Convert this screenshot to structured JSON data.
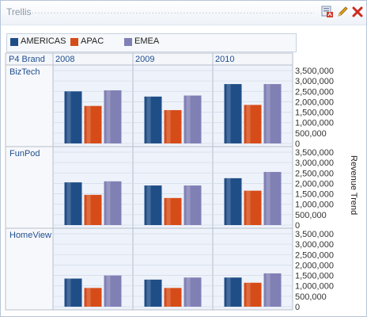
{
  "window": {
    "title": "Trellis"
  },
  "toolbar": {
    "icons": [
      "export-icon",
      "edit-pencil-icon",
      "close-icon"
    ]
  },
  "legend": [
    {
      "label": "AMERICAS",
      "color": "#1f4e87"
    },
    {
      "label": "APAC",
      "color": "#d64c19"
    },
    {
      "label": "EMEA",
      "color": "#8080b5"
    }
  ],
  "chart_data": {
    "type": "bar",
    "row_header": "P4 Brand",
    "columns": [
      "2008",
      "2009",
      "2010"
    ],
    "rows": [
      "BizTech",
      "FunPod",
      "HomeView"
    ],
    "series_names": [
      "AMERICAS",
      "APAC",
      "EMEA"
    ],
    "y_axis_title": "Revenue Trend",
    "y_ticks": [
      "3,500,000",
      "3,000,000",
      "2,500,000",
      "2,000,000",
      "1,500,000",
      "1,000,000",
      "500,000",
      "0"
    ],
    "ylim": [
      0,
      3500000
    ],
    "values": {
      "BizTech": {
        "2008": [
          2500000,
          1800000,
          2550000
        ],
        "2009": [
          2250000,
          1600000,
          2300000
        ],
        "2010": [
          2850000,
          1850000,
          2850000
        ]
      },
      "FunPod": {
        "2008": [
          2050000,
          1450000,
          2100000
        ],
        "2009": [
          1900000,
          1300000,
          1900000
        ],
        "2010": [
          2250000,
          1650000,
          2550000
        ]
      },
      "HomeView": {
        "2008": [
          1350000,
          900000,
          1500000
        ],
        "2009": [
          1300000,
          900000,
          1400000
        ],
        "2010": [
          1400000,
          1150000,
          1600000
        ]
      }
    },
    "grid": true
  }
}
